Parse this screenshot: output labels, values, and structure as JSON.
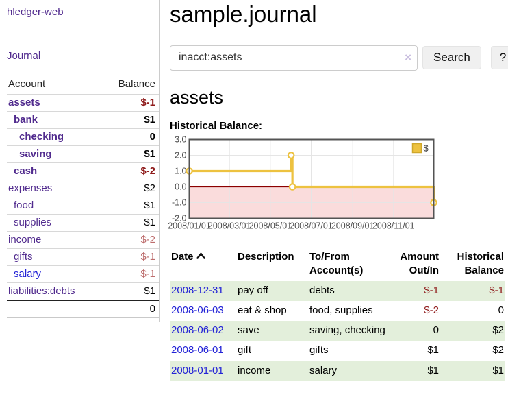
{
  "colors": {
    "purple": "#512b8e",
    "blue": "#2323d6",
    "neg_strong": "#8f1b1b",
    "neg_light": "#bd6d6d",
    "row_green": "#e3efdb",
    "chart_yellow": "#edc240",
    "chart_pink": "#fadcdc",
    "zero_line": "#8b0000",
    "chart_border": "#545454",
    "gridline": "#e5e5e5"
  },
  "sidebar": {
    "brand": "hledger-web",
    "journal_link": "Journal",
    "accounts_table": {
      "account_header": "Account",
      "balance_header": "Balance",
      "rows": [
        {
          "account": "assets",
          "balance": "$-1",
          "level": 1,
          "bold": true,
          "balance_style": "neg-strong"
        },
        {
          "account": "bank",
          "balance": "$1",
          "level": 2,
          "bold": true,
          "balance_style": ""
        },
        {
          "account": "checking",
          "balance": "0",
          "level": 3,
          "bold": true,
          "balance_style": ""
        },
        {
          "account": "saving",
          "balance": "$1",
          "level": 3,
          "bold": true,
          "balance_style": ""
        },
        {
          "account": "cash",
          "balance": "$-2",
          "level": 2,
          "bold": true,
          "balance_style": "neg-strong"
        },
        {
          "account": "expenses",
          "balance": "$2",
          "level": 1,
          "bold": false,
          "balance_style": ""
        },
        {
          "account": "food",
          "balance": "$1",
          "level": 2,
          "bold": false,
          "balance_style": ""
        },
        {
          "account": "supplies",
          "balance": "$1",
          "level": 2,
          "bold": false,
          "balance_style": ""
        },
        {
          "account": "income",
          "balance": "$-2",
          "level": 1,
          "bold": false,
          "balance_style": "neg-light"
        },
        {
          "account": "gifts",
          "balance": "$-1",
          "level": 2,
          "bold": false,
          "balance_style": "neg-light"
        },
        {
          "account": "salary",
          "balance": "$-1",
          "level": 2,
          "bold": false,
          "balance_style": "neg-light",
          "link_style": "blue"
        },
        {
          "account": "liabilities:debts",
          "balance": "$1",
          "level": 1,
          "bold": false,
          "balance_style": ""
        }
      ],
      "total": "0"
    }
  },
  "main": {
    "title": "sample.journal",
    "search": {
      "value": "inacct:assets",
      "clear_label": "×",
      "search_button": "Search",
      "help_button": "?"
    },
    "account_heading": "assets",
    "section_label": "Historical Balance:",
    "register": {
      "headers": [
        {
          "lines": [
            "Date"
          ],
          "sort": "asc",
          "align": "left"
        },
        {
          "lines": [
            "Description"
          ],
          "align": "left"
        },
        {
          "lines": [
            "To/From",
            "Account(s)"
          ],
          "align": "left"
        },
        {
          "lines": [
            "Amount",
            "Out/In"
          ],
          "align": "right"
        },
        {
          "lines": [
            "Historical",
            "Balance"
          ],
          "align": "right"
        }
      ],
      "rows": [
        {
          "date": "2008-12-31",
          "description": "pay off",
          "accounts": "debts",
          "amount": "$-1",
          "amount_style": "neg-strong",
          "balance": "$-1",
          "balance_style": "neg-strong"
        },
        {
          "date": "2008-06-03",
          "description": "eat & shop",
          "accounts": "food, supplies",
          "amount": "$-2",
          "amount_style": "neg-strong",
          "balance": "0",
          "balance_style": ""
        },
        {
          "date": "2008-06-02",
          "description": "save",
          "accounts": "saving, checking",
          "amount": "0",
          "amount_style": "",
          "balance": "$2",
          "balance_style": ""
        },
        {
          "date": "2008-06-01",
          "description": "gift",
          "accounts": "gifts",
          "amount": "$1",
          "amount_style": "",
          "balance": "$2",
          "balance_style": ""
        },
        {
          "date": "2008-01-01",
          "description": "income",
          "accounts": "salary",
          "amount": "$1",
          "amount_style": "",
          "balance": "$1",
          "balance_style": ""
        }
      ]
    }
  },
  "chart_data": {
    "type": "line",
    "title": "Historical Balance:",
    "step": true,
    "legend": {
      "label": "$",
      "position": "top-right"
    },
    "ylim": [
      -2,
      3
    ],
    "x_range_days": [
      0,
      365
    ],
    "y_ticks": [
      3.0,
      2.0,
      1.0,
      0.0,
      -1.0,
      -2.0
    ],
    "x_ticks": [
      {
        "day": 0,
        "label": "2008/01/01"
      },
      {
        "day": 60,
        "label": "2008/03/01"
      },
      {
        "day": 121,
        "label": "2008/05/01"
      },
      {
        "day": 182,
        "label": "2008/07/01"
      },
      {
        "day": 244,
        "label": "2008/09/01"
      },
      {
        "day": 305,
        "label": "2008/11/01"
      }
    ],
    "series": [
      {
        "name": "$",
        "points": [
          {
            "date": "2008-01-01",
            "day": 0,
            "value": 1
          },
          {
            "date": "2008-06-01",
            "day": 152,
            "value": 2
          },
          {
            "date": "2008-06-03",
            "day": 154,
            "value": 0
          },
          {
            "date": "2008-12-31",
            "day": 365,
            "value": -1
          }
        ]
      }
    ],
    "grid": true,
    "negative_region_shaded": true
  }
}
